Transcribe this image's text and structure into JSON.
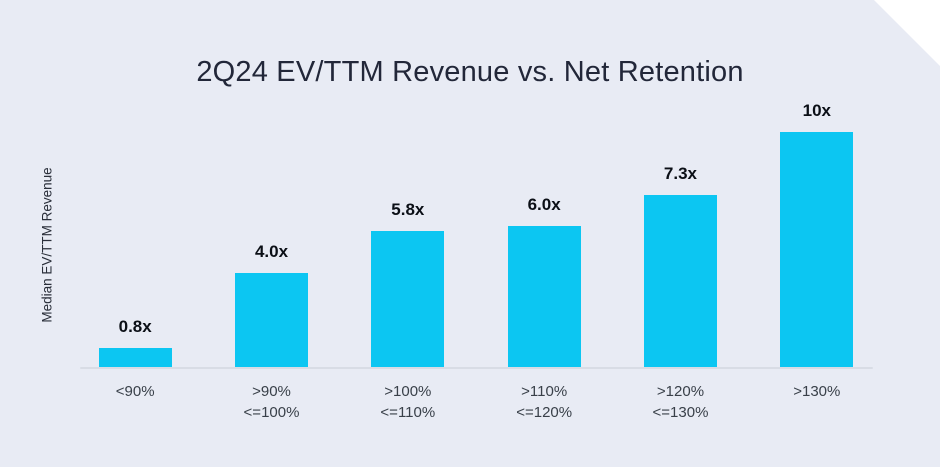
{
  "page": {
    "background_color": "#E8EBF4",
    "corner_decoration": "white-diagonal-cut-top-right"
  },
  "chart_data": {
    "type": "bar",
    "title": "2Q24 EV/TTM Revenue vs. Net Retention",
    "xlabel": "",
    "ylabel": "Median EV/TTM Revenue",
    "categories": [
      "<90%",
      ">90%\n<=100%",
      ">100%\n<=110%",
      ">110%\n<=120%",
      ">120%\n<=130%",
      ">130%"
    ],
    "values": [
      0.8,
      4.0,
      5.8,
      6.0,
      7.3,
      10
    ],
    "value_labels": [
      "0.8x",
      "4.0x",
      "5.8x",
      "6.0x",
      "7.3x",
      "10x"
    ],
    "ylim": [
      0,
      10
    ],
    "grid": false,
    "legend": "none",
    "bar_color": "#0CC6F2",
    "axis_line_color": "#D8DCE5",
    "title_color": "#222739",
    "value_label_color": "#0B0F16",
    "tick_label_color": "#394049"
  }
}
